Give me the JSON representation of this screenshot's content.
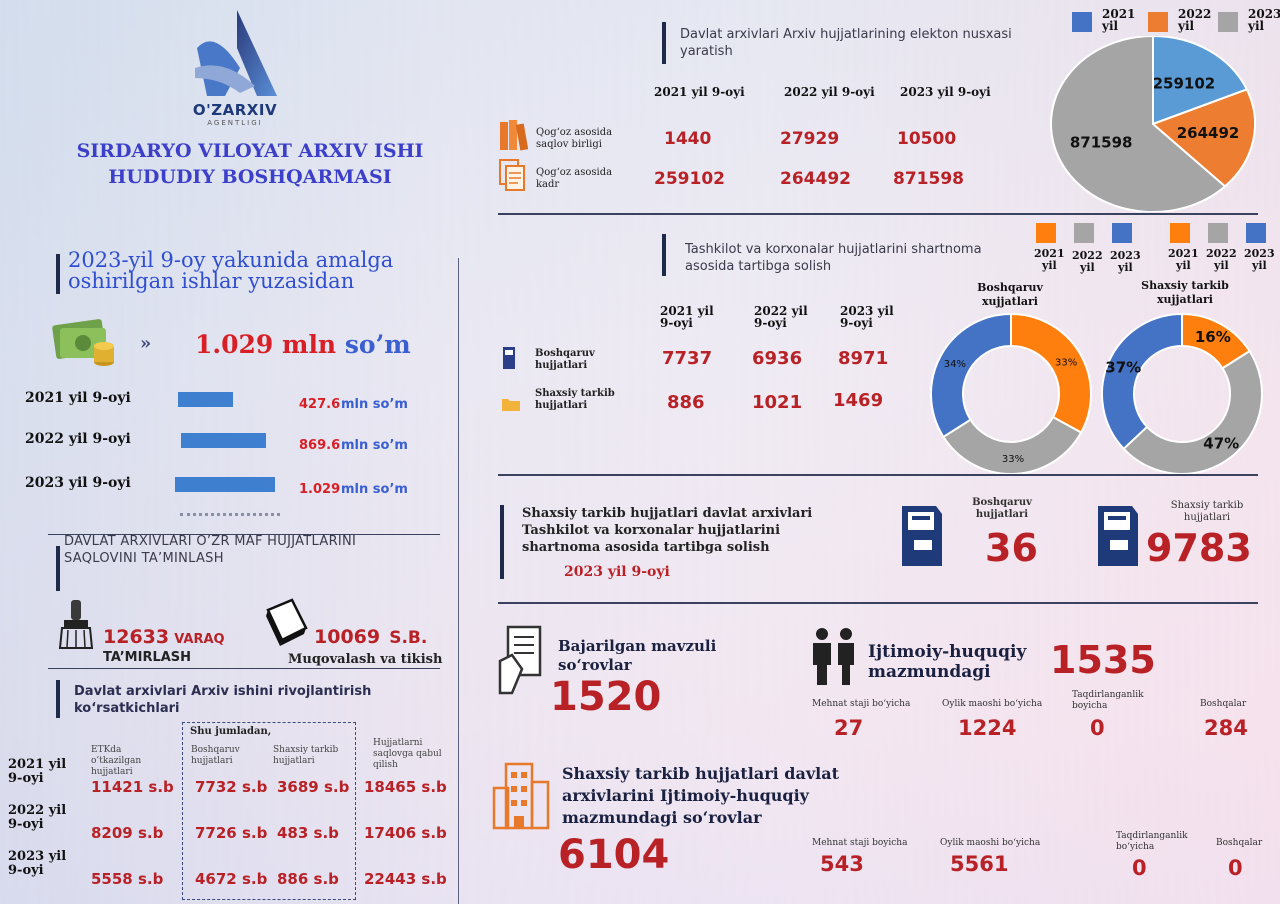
{
  "logo": {
    "name": "O'ZARXIV",
    "sub": "AGENTLIGI"
  },
  "org_title": [
    "SIRDARYO VILOYAT ARXIV ISHI",
    "HUDUDIY BOSHQARMASI"
  ],
  "summary": {
    "heading": [
      "2023-yil 9-oy yakunida amalga",
      "oshirilgan ishlar yuzasidan"
    ],
    "total_num": "1.029 mln",
    "total_unit": "so’m",
    "rows": [
      {
        "label": "2021 yil 9-oyi",
        "num": "427.6",
        "unit": "mln so’m",
        "value": 427.6
      },
      {
        "label": "2022 yil 9-oyi",
        "num": "869.6",
        "unit": "mln so’m",
        "value": 869.6
      },
      {
        "label": "2023 yil 9-oyi",
        "num": "1.029",
        "unit": "mln so’m",
        "value": 1029
      }
    ]
  },
  "preservation": {
    "heading": [
      "DAVLAT ARXIVLARI O’ZR MAF HUJJATLARINI",
      "SAQLOVINI TA’MINLASH"
    ],
    "repair": {
      "num": "12633",
      "unit": "VARAQ",
      "label": "TA’MIRLASH"
    },
    "binding": {
      "num": "10069",
      "unit": "S.B.",
      "label": "Muqovalash va tikish"
    }
  },
  "development": {
    "heading": [
      "Davlat arxivlari Arxiv ishini rivojlantirish",
      "ko‘rsatkichlari"
    ],
    "group_label": "Shu jumladan,",
    "columns": [
      "ETKda o’tkazilgan hujjatlari",
      "Boshqaruv hujjatlari",
      "Shaxsiy tarkib hujjatlari",
      "Hujjatlarni saqlovga qabul qilish"
    ],
    "rows": [
      {
        "year": [
          "2021 yil",
          "9-oyi"
        ],
        "cells": [
          "11421 s.b",
          "7732 s.b",
          "3689 s.b",
          "18465 s.b"
        ]
      },
      {
        "year": [
          "2022 yil",
          "9-oyi"
        ],
        "cells": [
          "8209 s.b",
          "7726 s.b",
          "483 s.b",
          "17406 s.b"
        ]
      },
      {
        "year": [
          "2023 yil",
          "9-oyi"
        ],
        "cells": [
          "5558 s.b",
          "4672 s.b",
          "886 s.b",
          "22443 s.b"
        ]
      }
    ]
  },
  "digital": {
    "heading": [
      "Davlat arxivlari Arxiv hujjatlarining elekton nusxasi",
      "yaratish"
    ],
    "years": [
      "2021 yil 9-oyi",
      "2022 yil 9-oyi",
      "2023 yil 9-oyi"
    ],
    "rows": [
      {
        "label": [
          "Qog‘oz asosida",
          "saqlov birligi"
        ],
        "values": [
          "1440",
          "27929",
          "10500"
        ]
      },
      {
        "label": [
          "Qog‘oz asosida",
          "kadr"
        ],
        "values": [
          "259102",
          "264492",
          "871598"
        ]
      }
    ],
    "legend": [
      {
        "label": [
          "2021",
          "yil"
        ],
        "color": "#4472c4"
      },
      {
        "label": [
          "2022",
          "yil"
        ],
        "color": "#ed7d31"
      },
      {
        "label": [
          "2023",
          "yil"
        ],
        "color": "#a5a5a5"
      }
    ]
  },
  "chart_data": [
    {
      "type": "pie",
      "series": [
        {
          "values": [
            259102,
            264492,
            871598
          ]
        }
      ],
      "categories": [
        "2021 yil",
        "2022 yil",
        "2023 yil"
      ],
      "labels": [
        "259102",
        "264492",
        "871598"
      ],
      "colors": [
        "#5b9bd5",
        "#ed7d31",
        "#a5a5a5"
      ]
    },
    {
      "type": "pie",
      "title": [
        "Boshqaruv",
        "xujjatlari"
      ],
      "categories": [
        "2021 yil",
        "2022 yil",
        "2023 yil"
      ],
      "values": [
        33,
        33,
        34
      ],
      "labels": [
        "33%",
        "33%",
        "34%"
      ],
      "colors": [
        "#ff7f0e",
        "#a5a5a5",
        "#4472c4"
      ]
    },
    {
      "type": "pie",
      "title": [
        "Shaxsiy tarkib",
        "xujjatlari"
      ],
      "categories": [
        "2021 yil",
        "2022 yil",
        "2023 yil"
      ],
      "values": [
        16,
        47,
        37
      ],
      "labels": [
        "16%",
        "47%",
        "37%"
      ],
      "colors": [
        "#ff7f0e",
        "#a5a5a5",
        "#4472c4"
      ]
    }
  ],
  "contracts": {
    "heading": [
      "Tashkilot va korxonalar hujjatlarini shartnoma",
      "asosida tartibga solish"
    ],
    "years": [
      [
        "2021 yil",
        "9-oyi"
      ],
      [
        "2022 yil",
        "9-oyi"
      ],
      [
        "2023 yil",
        "9-oyi"
      ]
    ],
    "rows": [
      {
        "label": [
          "Boshqaruv",
          "hujjatlari"
        ],
        "values": [
          "7737",
          "6936",
          "8971"
        ]
      },
      {
        "label": [
          "Shaxsiy tarkib",
          "hujjatlari"
        ],
        "values": [
          "886",
          "1021",
          "1469"
        ]
      }
    ],
    "legend_labels": [
      [
        "2021",
        "yil"
      ],
      [
        "2022",
        "yil"
      ],
      [
        "2023",
        "yil"
      ]
    ]
  },
  "personal_archives": {
    "heading": [
      "Shaxsiy tarkib hujjatlari davlat arxivlari",
      "Tashkilot va korxonalar hujjatlarini",
      "shartnoma asosida tartibga solish"
    ],
    "period": "2023 yil 9-oyi",
    "items": [
      {
        "label": [
          "Boshqaruv",
          "hujjatlari"
        ],
        "value": "36"
      },
      {
        "label": [
          "Shaxsiy tarkib",
          "hujjatlari"
        ],
        "value": "9783"
      }
    ]
  },
  "thematic": {
    "label": [
      "Bajarilgan mavzuli",
      "so‘rovlar"
    ],
    "value": "1520"
  },
  "social": {
    "label": [
      "Ijtimoiy-huquqiy",
      "mazmundagi"
    ],
    "value": "1535",
    "items": [
      {
        "label": [
          "Mehnat staji bo‘yicha"
        ],
        "value": "27"
      },
      {
        "label": [
          "Oylik maoshi bo‘yicha"
        ],
        "value": "1224"
      },
      {
        "label": [
          "Taqdirlanganlik",
          "boyicha"
        ],
        "value": "0"
      },
      {
        "label": [
          "Boshqalar"
        ],
        "value": "284"
      }
    ]
  },
  "personal_social": {
    "label": [
      "Shaxsiy tarkib hujjatlari davlat",
      "arxivlarini Ijtimoiy-huquqiy",
      "mazmundagi so‘rovlar"
    ],
    "value": "6104",
    "items": [
      {
        "label": [
          "Mehnat staji boyicha"
        ],
        "value": "543"
      },
      {
        "label": [
          "Oylik maoshi bo‘yicha"
        ],
        "value": "5561"
      },
      {
        "label": [
          "Taqdirlanganlik",
          "bo‘yicha"
        ],
        "value": "0"
      },
      {
        "label": [
          "Boshqalar"
        ],
        "value": "0"
      }
    ]
  }
}
